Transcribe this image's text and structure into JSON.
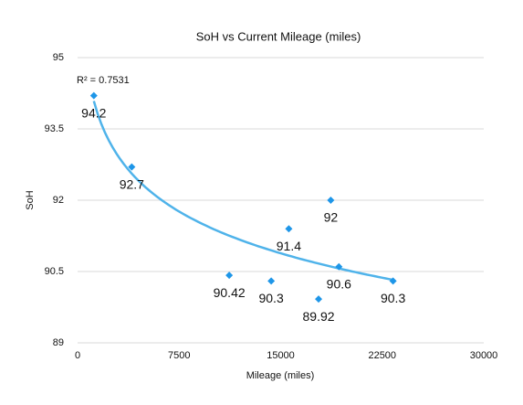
{
  "chart_data": {
    "type": "scatter",
    "title": "SoH vs Current Mileage (miles)",
    "x_label": "Mileage (miles)",
    "y_label": "SoH",
    "x": [
      1200,
      4000,
      18700,
      15600,
      19300,
      11200,
      14300,
      17800,
      23300
    ],
    "values": [
      94.2,
      92.7,
      92,
      91.4,
      90.6,
      90.42,
      90.3,
      89.92,
      90.3
    ],
    "color": "#1e96e8",
    "trendline": "logarithmic",
    "trendline_color": "#4fb3ea",
    "annotation": "R² = 0.7531",
    "xlim": [
      0,
      30000
    ],
    "xticks": [
      0,
      7500,
      15000,
      22500,
      30000
    ],
    "ylim": [
      89,
      95
    ],
    "yticks": [
      89,
      90.5,
      92,
      93.5,
      95
    ],
    "grid": true
  }
}
